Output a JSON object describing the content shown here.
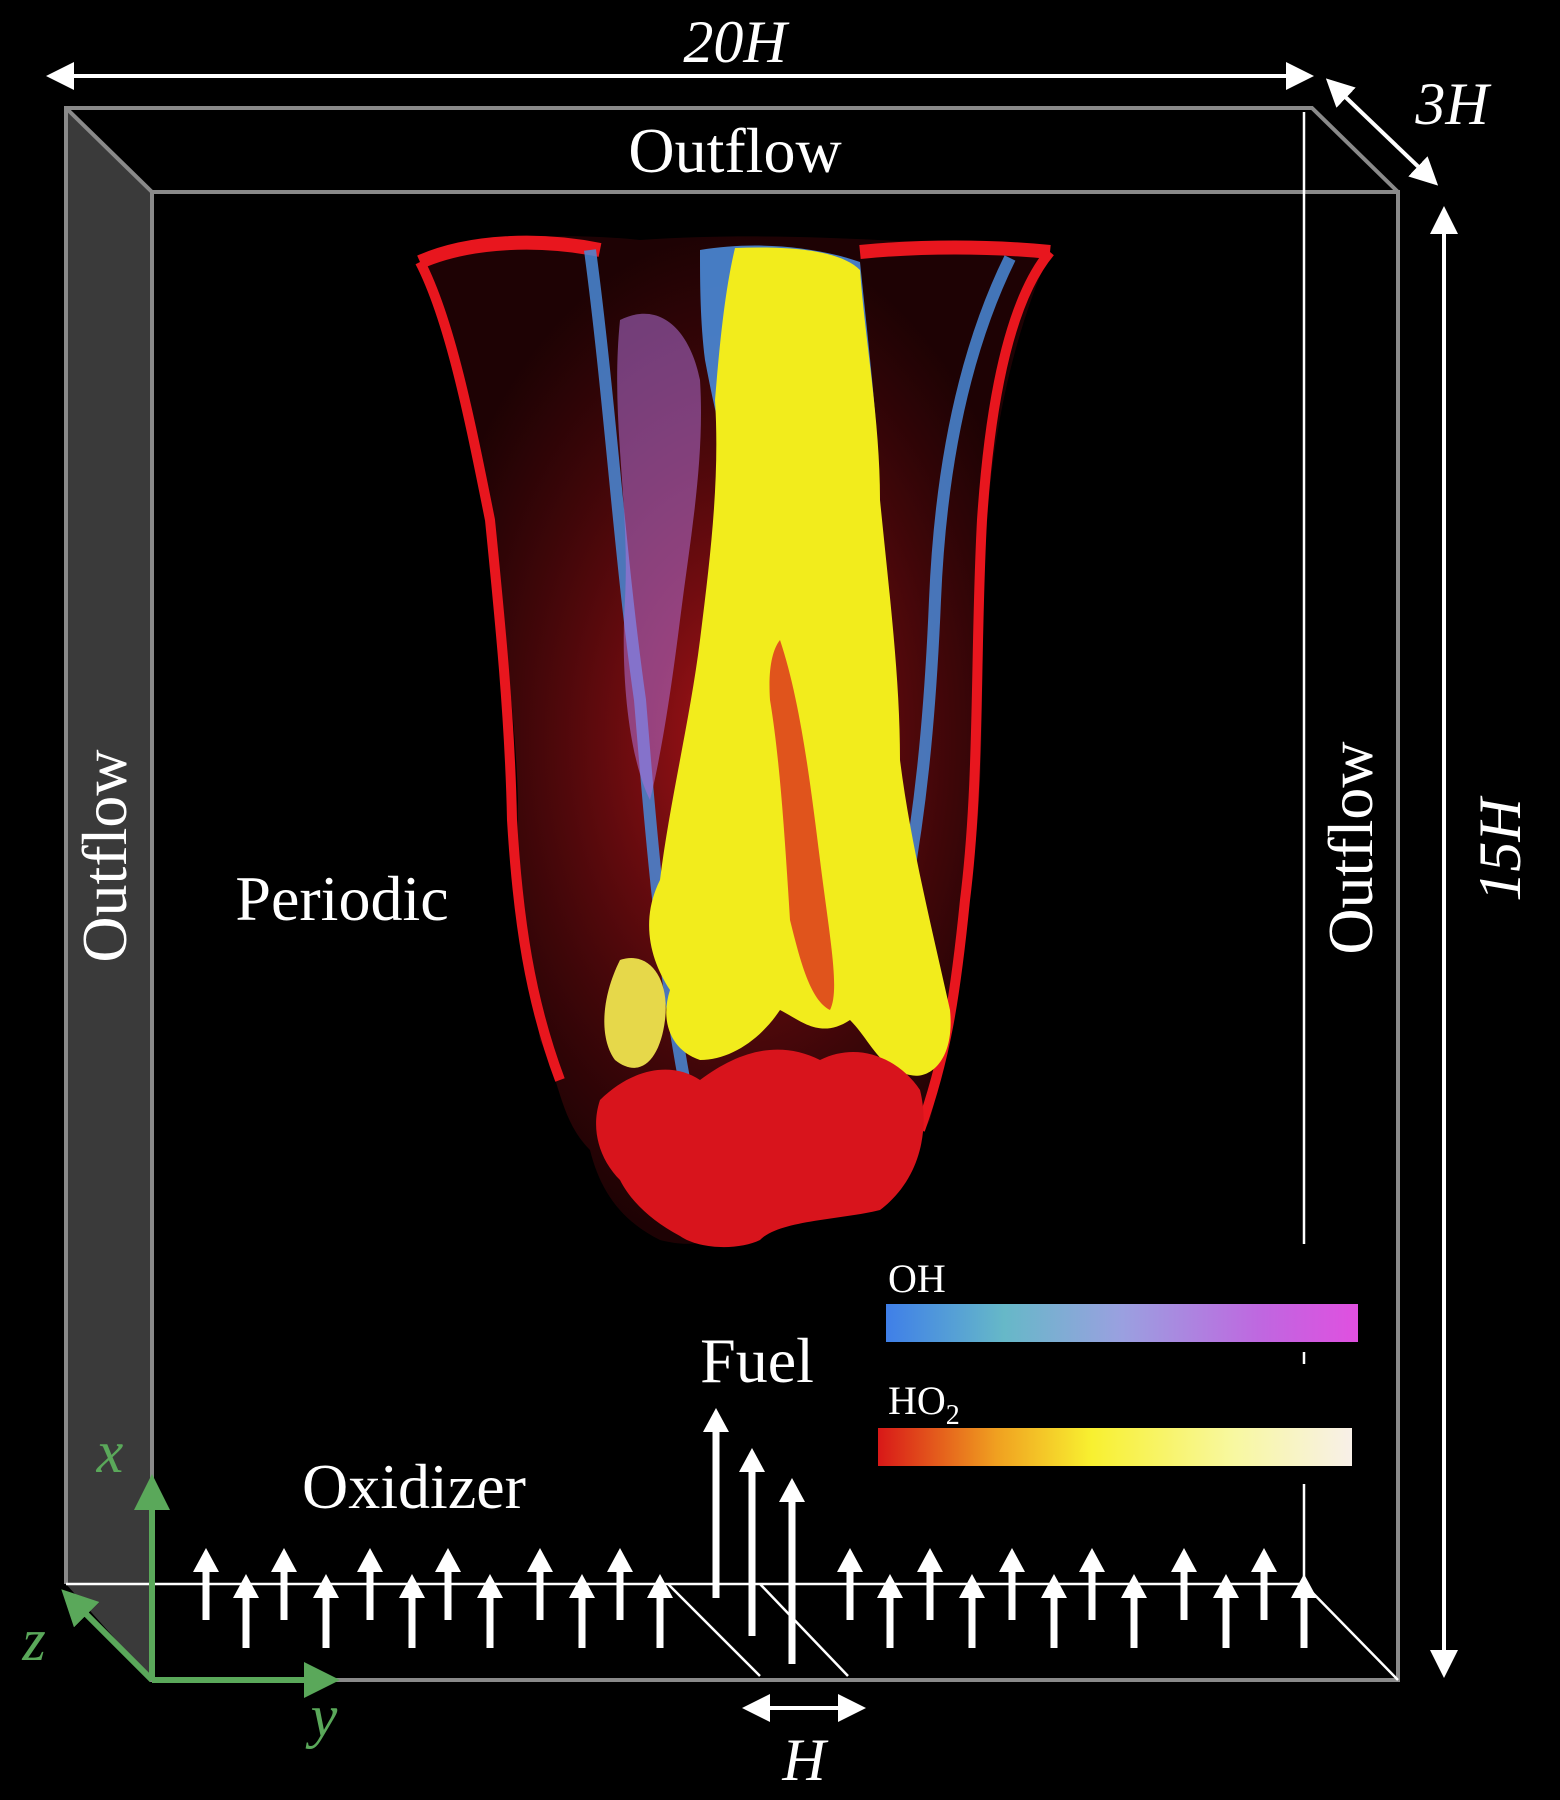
{
  "dimensions": {
    "width": "20H",
    "depth": "3H",
    "height": "15H",
    "jet": "H"
  },
  "boundaries": {
    "top": "Outflow",
    "left": "Outflow",
    "right": "Outflow",
    "side": "Periodic"
  },
  "inflow": {
    "fuel": "Fuel",
    "oxidizer": "Oxidizer"
  },
  "axes": {
    "x": "x",
    "y": "y",
    "z": "z"
  },
  "colorbars": {
    "oh": {
      "label": "OH",
      "colors": [
        "#3f7fe8",
        "#66b8c8",
        "#9aa0e0",
        "#c066e0",
        "#e050e0"
      ]
    },
    "ho2": {
      "label_main": "HO",
      "label_sub": "2",
      "colors": [
        "#d81818",
        "#f0a020",
        "#f8f030",
        "#f8f8a0",
        "#f8f0e8"
      ]
    }
  },
  "colors": {
    "box_edge": "#8a8a8a",
    "left_face": "#3a3a3a",
    "axis_green": "#5aa85a",
    "flame_red": "#d8141c",
    "flame_yellow": "#f2ec1c",
    "flame_blue": "#4a8ad8",
    "flame_purple": "#b070d8"
  }
}
